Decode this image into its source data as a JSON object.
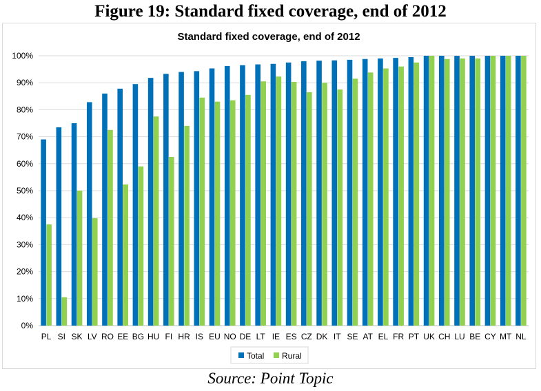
{
  "figure_title": "Figure 19: Standard fixed coverage, end of 2012",
  "source": "Source: Point Topic",
  "colors": {
    "total": "#0070b8",
    "rural": "#92d050",
    "grid": "#d9d9d9",
    "axis": "#bfbfbf"
  },
  "chart_data": {
    "type": "bar",
    "title": "Standard fixed coverage, end of 2012",
    "xlabel": "",
    "ylabel": "",
    "ylim": [
      0,
      100
    ],
    "yticks": [
      "0%",
      "10%",
      "20%",
      "30%",
      "40%",
      "50%",
      "60%",
      "70%",
      "80%",
      "90%",
      "100%"
    ],
    "grid": true,
    "legend_position": "bottom",
    "categories": [
      "PL",
      "SI",
      "SK",
      "LV",
      "RO",
      "EE",
      "BG",
      "HU",
      "FI",
      "HR",
      "IS",
      "EU",
      "NO",
      "DE",
      "LT",
      "IE",
      "ES",
      "CZ",
      "DK",
      "IT",
      "SE",
      "AT",
      "EL",
      "FR",
      "PT",
      "UK",
      "CH",
      "LU",
      "BE",
      "CY",
      "MT",
      "NL"
    ],
    "series": [
      {
        "name": "Total",
        "values": [
          69,
          73.5,
          75,
          82.8,
          86,
          87.8,
          89.5,
          91.8,
          93.3,
          94,
          94.3,
          95.3,
          96.2,
          96.5,
          96.8,
          97,
          97.5,
          98,
          98.2,
          98.3,
          98.5,
          98.8,
          99,
          99.2,
          99.5,
          100,
          100,
          100,
          100,
          100,
          100,
          100
        ]
      },
      {
        "name": "Rural",
        "values": [
          37.5,
          10.5,
          50,
          39.8,
          72.5,
          52.3,
          59,
          77.5,
          62.5,
          74,
          84.5,
          83,
          83.5,
          85.5,
          90.5,
          92.3,
          90.3,
          86.5,
          90,
          87.5,
          91.5,
          93.8,
          95.3,
          96,
          97.5,
          100,
          98.8,
          99,
          99,
          100,
          100,
          100
        ]
      }
    ]
  }
}
